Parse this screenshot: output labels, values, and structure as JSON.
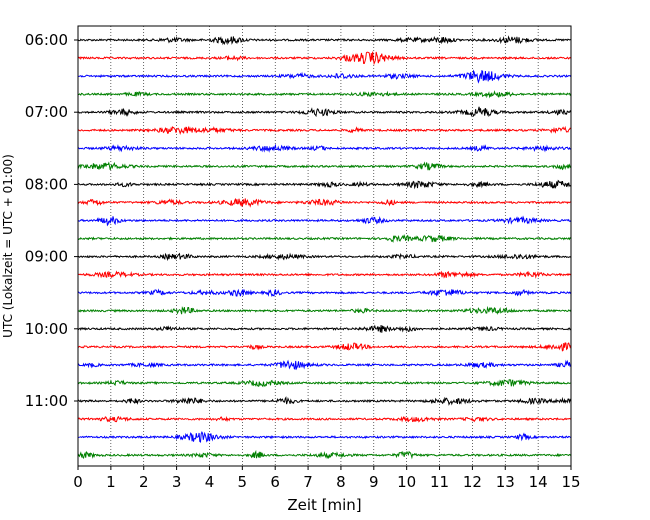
{
  "chart_data": {
    "type": "line",
    "title": "",
    "xlabel": "Zeit  [min]",
    "ylabel": "UTC (Lokalzeit = UTC + 01:00)",
    "xlim": [
      0,
      15
    ],
    "x_ticks": [
      0,
      1,
      2,
      3,
      4,
      5,
      6,
      7,
      8,
      9,
      10,
      11,
      12,
      13,
      14,
      15
    ],
    "y_tick_labels": [
      "06:00",
      "07:00",
      "08:00",
      "09:00",
      "10:00",
      "11:00"
    ],
    "grid": "vertical-dotted",
    "trace_interval_minutes": 15,
    "start_time": "06:00",
    "end_time": "11:45",
    "trace_colors": [
      "#000000",
      "#ff0000",
      "#0000ff",
      "#008000"
    ],
    "series": [
      {
        "label": "06:00"
      },
      {
        "label": "06:15"
      },
      {
        "label": "06:30"
      },
      {
        "label": "06:45"
      },
      {
        "label": "07:00"
      },
      {
        "label": "07:15"
      },
      {
        "label": "07:30"
      },
      {
        "label": "07:45"
      },
      {
        "label": "08:00"
      },
      {
        "label": "08:15"
      },
      {
        "label": "08:30"
      },
      {
        "label": "08:45"
      },
      {
        "label": "09:00"
      },
      {
        "label": "09:15"
      },
      {
        "label": "09:30"
      },
      {
        "label": "09:45"
      },
      {
        "label": "10:00"
      },
      {
        "label": "10:15"
      },
      {
        "label": "10:30"
      },
      {
        "label": "10:45"
      },
      {
        "label": "11:00"
      },
      {
        "label": "11:15"
      },
      {
        "label": "11:30"
      },
      {
        "label": "11:45"
      }
    ]
  }
}
